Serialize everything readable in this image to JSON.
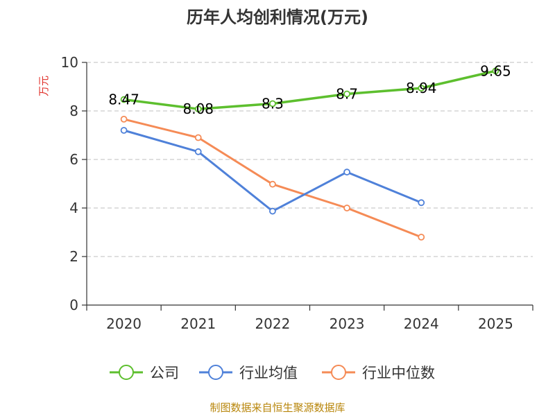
{
  "chart_data": {
    "type": "line",
    "title": "历年人均创利情况(万元)",
    "ylabel": "万元",
    "xlabel": "",
    "categories": [
      "2020",
      "2021",
      "2022",
      "2023",
      "2024",
      "2025"
    ],
    "ylim": [
      0,
      10
    ],
    "yticks": [
      0,
      2,
      4,
      6,
      8,
      10
    ],
    "grid": true,
    "legend_position": "bottom",
    "series": [
      {
        "name": "公司",
        "color": "#5dbf2e",
        "values": [
          8.47,
          8.08,
          8.3,
          8.7,
          8.94,
          9.65
        ],
        "labels": [
          "8.47",
          "8.08",
          "8.3",
          "8.7",
          "8.94",
          "9.65"
        ]
      },
      {
        "name": "行业均值",
        "color": "#4f81d9",
        "values": [
          7.2,
          6.32,
          3.87,
          5.48,
          4.22,
          null
        ]
      },
      {
        "name": "行业中位数",
        "color": "#f58b56",
        "values": [
          7.66,
          6.9,
          4.98,
          4.0,
          2.8,
          null
        ]
      }
    ]
  },
  "source": "制图数据来自恒生聚源数据库",
  "colors": {
    "unit": "#e0302a",
    "axis": "#333333",
    "grid": "#cccccc"
  }
}
